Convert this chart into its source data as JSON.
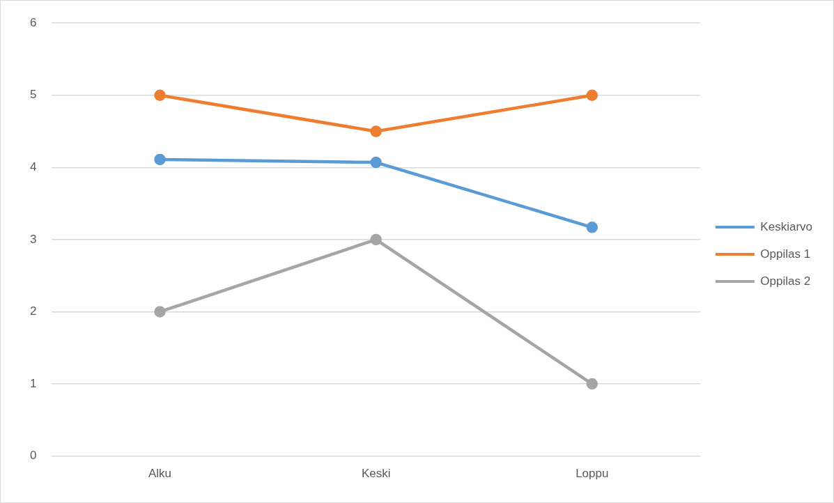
{
  "chart_data": {
    "type": "line",
    "categories": [
      "Alku",
      "Keski",
      "Loppu"
    ],
    "series": [
      {
        "name": "Keskiarvo",
        "color": "#5b9bd5",
        "values": [
          4.11,
          4.07,
          3.17
        ]
      },
      {
        "name": "Oppilas 1",
        "color": "#ed7d31",
        "values": [
          5,
          4.5,
          5
        ]
      },
      {
        "name": "Oppilas 2",
        "color": "#a5a5a5",
        "values": [
          2,
          3,
          1
        ]
      }
    ],
    "ylim": [
      0,
      6
    ],
    "yticks": [
      0,
      1,
      2,
      3,
      4,
      5,
      6
    ],
    "grid": "y",
    "legend": "right",
    "marker": "circle",
    "line_style": "solid"
  }
}
